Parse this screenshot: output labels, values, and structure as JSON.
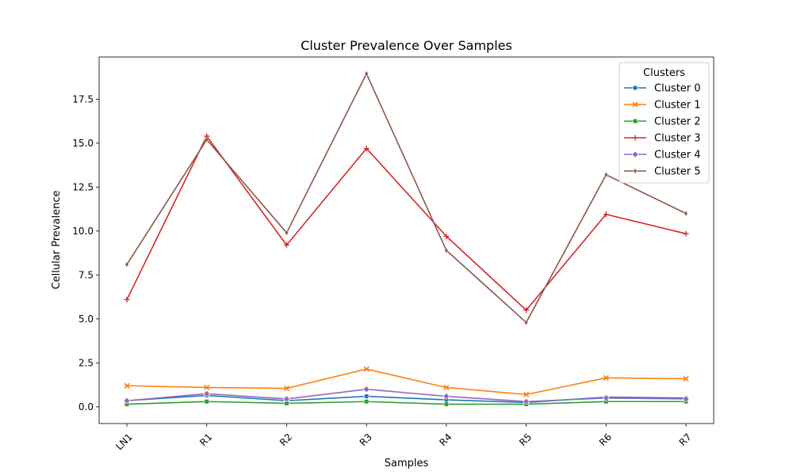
{
  "chart_data": {
    "type": "line",
    "title": "Cluster Prevalence Over Samples",
    "xlabel": "Samples",
    "ylabel": "Cellular Prevalence",
    "categories": [
      "LN1",
      "R1",
      "R2",
      "R3",
      "R4",
      "R5",
      "R6",
      "R7"
    ],
    "ylim": [
      -0.95,
      19.9
    ],
    "yticks": [
      "0.0",
      "2.5",
      "5.0",
      "7.5",
      "10.0",
      "12.5",
      "15.0",
      "17.5"
    ],
    "grid": false,
    "legend": {
      "title": "Clusters",
      "placement": "top-right"
    },
    "series": [
      {
        "name": "Cluster 0",
        "color": "#1f77b4",
        "marker": "circle",
        "values": [
          0.35,
          0.65,
          0.35,
          0.6,
          0.4,
          0.25,
          0.55,
          0.5
        ]
      },
      {
        "name": "Cluster 1",
        "color": "#ff7f0e",
        "marker": "x",
        "values": [
          1.2,
          1.1,
          1.05,
          2.15,
          1.1,
          0.7,
          1.65,
          1.6
        ]
      },
      {
        "name": "Cluster 2",
        "color": "#2ca02c",
        "marker": "square",
        "values": [
          0.15,
          0.3,
          0.2,
          0.3,
          0.15,
          0.15,
          0.3,
          0.3
        ]
      },
      {
        "name": "Cluster 3",
        "color": "#d62728",
        "marker": "plus",
        "values": [
          6.1,
          15.4,
          9.2,
          14.7,
          9.7,
          5.5,
          10.95,
          9.85
        ]
      },
      {
        "name": "Cluster 4",
        "color": "#9467bd",
        "marker": "diamond",
        "values": [
          0.35,
          0.75,
          0.45,
          1.0,
          0.6,
          0.3,
          0.5,
          0.45
        ]
      },
      {
        "name": "Cluster 5",
        "color": "#8c564b",
        "marker": "thin-diamond",
        "values": [
          8.1,
          15.2,
          9.9,
          18.95,
          8.9,
          4.8,
          13.2,
          11.0
        ]
      }
    ]
  }
}
